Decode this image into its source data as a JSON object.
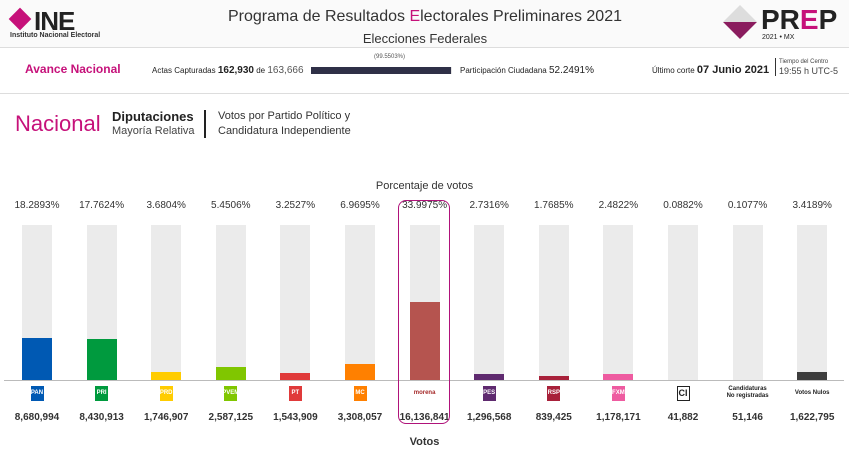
{
  "header": {
    "ine_logo": "INE",
    "ine_sub": "Instituto Nacional Electoral",
    "title_pre": "Programa de Resultados ",
    "title_e": "E",
    "title_post": "lectorales Preliminares 2021",
    "subtitle": "Elecciones Federales",
    "prep_p": "PR",
    "prep_e": "E",
    "prep_end": "P",
    "prep_year": "2021 • MX"
  },
  "avance": {
    "label": "Avance Nacional",
    "actas_label": "Actas Capturadas",
    "actas": "162,930",
    "de": "de",
    "total": "163,666",
    "percent": "(99.5503%)",
    "progress": 99.5503,
    "participacion_label": "Participación Ciudadana",
    "participacion": "52.2491%",
    "corte_label": "Último corte",
    "corte": "07 Junio 2021",
    "tz_label": "Tiempo del Centro",
    "tz": "19:55 h UTC-5"
  },
  "section": {
    "scope": "Nacional",
    "election": "Diputaciones",
    "type": "Mayoría Relativa",
    "desc1": "Votos por Partido Político y",
    "desc2": "Candidatura Independiente"
  },
  "chart_data": {
    "type": "bar",
    "title": "Porcentaje de votos",
    "xlabel": "Votos",
    "highlighted": "morena",
    "categories": [
      "PAN",
      "PRI",
      "PRD",
      "PVEM",
      "PT",
      "MC",
      "morena",
      "PES",
      "RSP",
      "FXM",
      "CI",
      "Candidaturas No registradas",
      "Votos Nulos"
    ],
    "percent_labels": [
      "18.2893%",
      "17.7624%",
      "3.6804%",
      "5.4506%",
      "3.2527%",
      "6.9695%",
      "33.9975%",
      "2.7316%",
      "1.7685%",
      "2.4822%",
      "0.0882%",
      "0.1077%",
      "3.4189%"
    ],
    "values": [
      18.2893,
      17.7624,
      3.6804,
      5.4506,
      3.2527,
      6.9695,
      33.9975,
      2.7316,
      1.7685,
      2.4822,
      0.0882,
      0.1077,
      3.4189
    ],
    "votes": [
      "8,680,994",
      "8,430,913",
      "1,746,907",
      "2,587,125",
      "1,543,909",
      "3,308,057",
      "16,136,841",
      "1,296,568",
      "839,425",
      "1,178,171",
      "41,882",
      "51,146",
      "1,622,795"
    ],
    "logo_text": [
      "PAN",
      "PRI",
      "PRD",
      "PVEM",
      "PT",
      "MC",
      "morena",
      "PES",
      "RSP",
      "FXM",
      "CI",
      "Candidaturas No registradas",
      "Votos Nulos"
    ],
    "colors": [
      "#0059b3",
      "#009a3e",
      "#ffcc00",
      "#80c600",
      "#e03a3a",
      "#ff8000",
      "#b5544f",
      "#5f2a6f",
      "#a8213a",
      "#ee5ba0",
      "#e6e6e6",
      "#e6e6e6",
      "#3d3d3d"
    ]
  }
}
